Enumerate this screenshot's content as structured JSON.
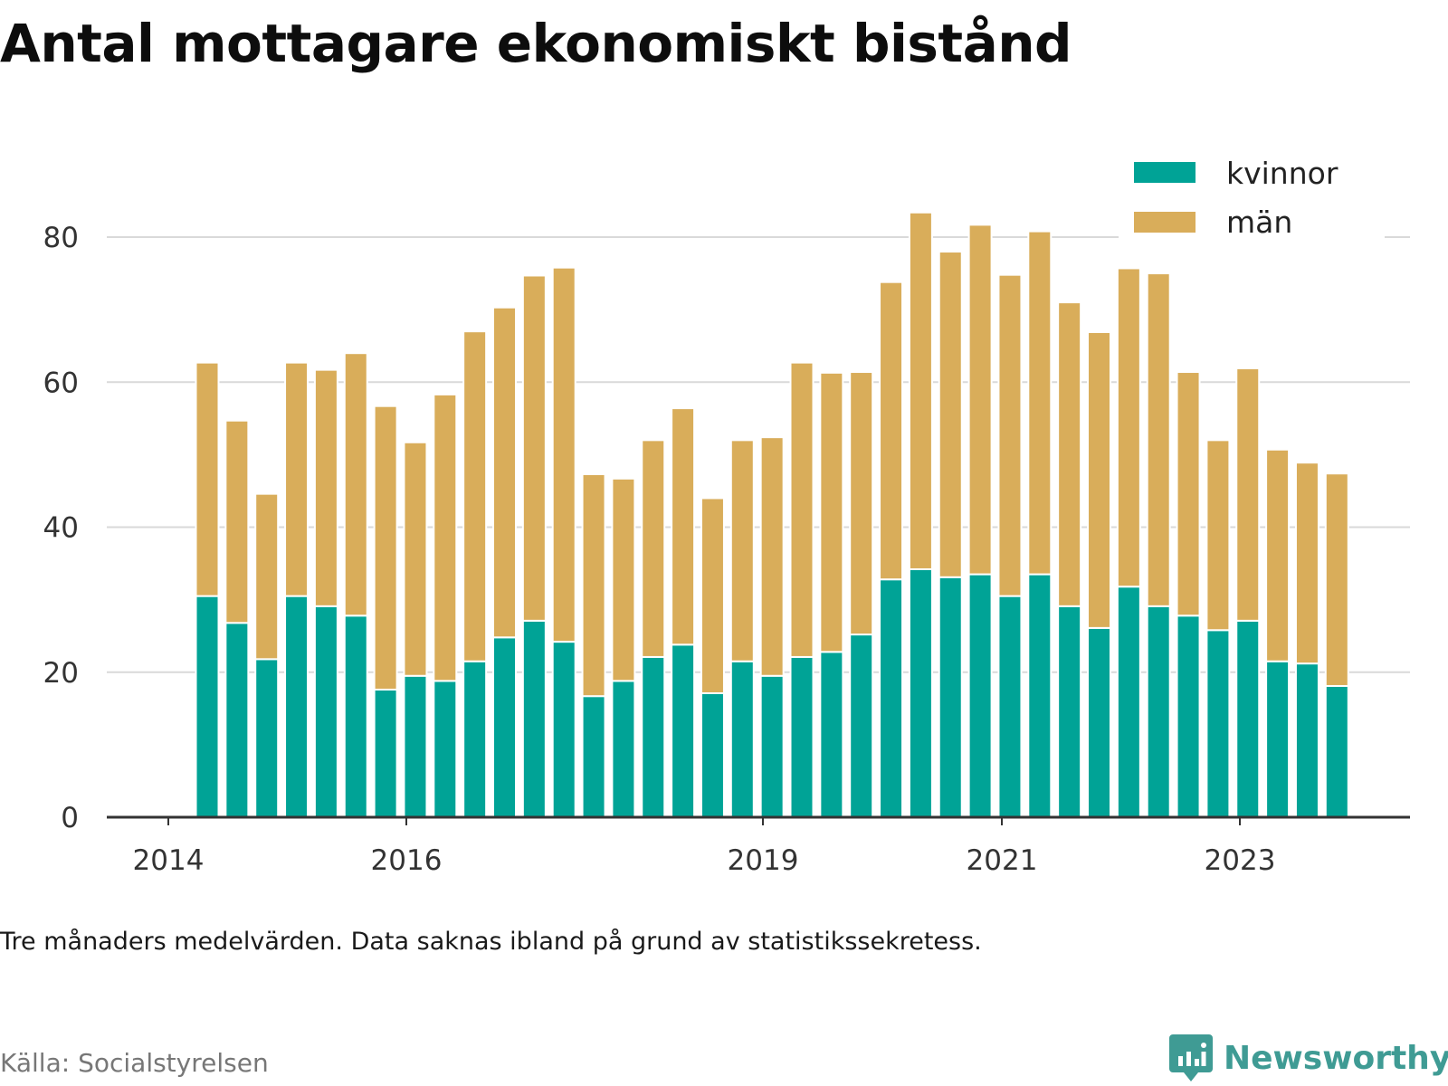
{
  "page": {
    "title": "Antal mottagare ekonomiskt bistånd",
    "note": "Tre månaders medelvärden. Data saknas ibland på grund av statistikssekretess.",
    "source": "Källa: Socialstyrelsen",
    "brand": "Newsworthy",
    "brand_icon": "newsworthy-logo-icon"
  },
  "colors": {
    "kvinnor": "#00a396",
    "man": "#d9ad5a",
    "grid": "#d9d9d9",
    "axis": "#333333"
  },
  "chart_data": {
    "type": "bar",
    "stacked": true,
    "title": "Antal mottagare ekonomiskt bistånd",
    "xlabel": "",
    "ylabel": "",
    "ylim": [
      0,
      90
    ],
    "y_ticks": [
      0,
      20,
      40,
      60,
      80
    ],
    "grid": true,
    "legend_position": "top-right",
    "x_ticks": [
      "2014",
      "2016",
      "2019",
      "2021",
      "2023"
    ],
    "series": [
      {
        "name": "kvinnor",
        "values": [
          30.5,
          26.8,
          21.8,
          30.5,
          29.1,
          27.8,
          17.6,
          19.5,
          18.8,
          21.5,
          24.8,
          27.1,
          24.2,
          16.7,
          18.8,
          22.1,
          23.8,
          17.1,
          21.5,
          19.5,
          22.1,
          22.8,
          25.2,
          32.8,
          34.2,
          33.1,
          33.5,
          30.5,
          33.5,
          29.1,
          26.1,
          31.8,
          29.1,
          27.8,
          25.8,
          27.1,
          21.5,
          21.2,
          18.1
        ]
      },
      {
        "name": "män",
        "values": [
          32.2,
          27.9,
          22.8,
          32.2,
          32.6,
          36.2,
          39.1,
          32.2,
          39.5,
          45.5,
          45.5,
          47.6,
          51.6,
          30.6,
          27.9,
          29.9,
          32.6,
          26.9,
          30.5,
          32.9,
          40.6,
          38.5,
          36.2,
          41.0,
          49.2,
          44.9,
          48.2,
          44.3,
          47.3,
          41.9,
          40.8,
          43.9,
          45.9,
          33.6,
          26.2,
          34.8,
          29.2,
          27.7,
          29.3
        ]
      }
    ]
  }
}
